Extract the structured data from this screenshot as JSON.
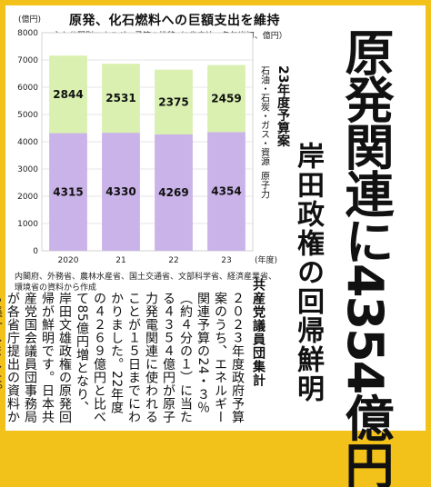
{
  "headline": "原発関連に4354億円",
  "subhead_small": "23年度予算案",
  "subhead_big": "岸田政権の回帰鮮明",
  "credit": "共産党議員団集計",
  "body": "２０２３年度政府予算案のうち、エネルギー関連予算の24・３％（約４分の１）に当たる４３５４億円が原子力発電関連に使われることが１５日までにわかりました。22年度の４２６９億円と比べて85億円増となり、岸田文雄政権の原発回帰が鮮明です。日本共産党国会議員団事務局が各省庁提出の資料から集計しました。",
  "source": "内閣府、外務省、農林水産省、国土交通省、文部科学省、経済産業省、環境省の資料から作成",
  "chart_data": {
    "type": "bar",
    "title": "原発、化石燃料への巨額支出を維持",
    "subtitle": "主な分野別エネルギー予算の推移（7省庁计、各年当初、億円）",
    "unit": "(億円)",
    "categories": [
      "2020",
      "21",
      "22",
      "23"
    ],
    "x_suffix": "(年度)",
    "ylim": [
      0,
      8000
    ],
    "yticks": [
      0,
      1000,
      2000,
      3000,
      4000,
      5000,
      6000,
      7000,
      8000
    ],
    "series": [
      {
        "name": "原子力",
        "values": [
          4315,
          4330,
          4269,
          4354
        ],
        "color": "#c9b3e8"
      },
      {
        "name": "石油・石炭・ガス・資源",
        "values": [
          2844,
          2531,
          2375,
          2459
        ],
        "color": "#d9f0b0"
      }
    ]
  }
}
